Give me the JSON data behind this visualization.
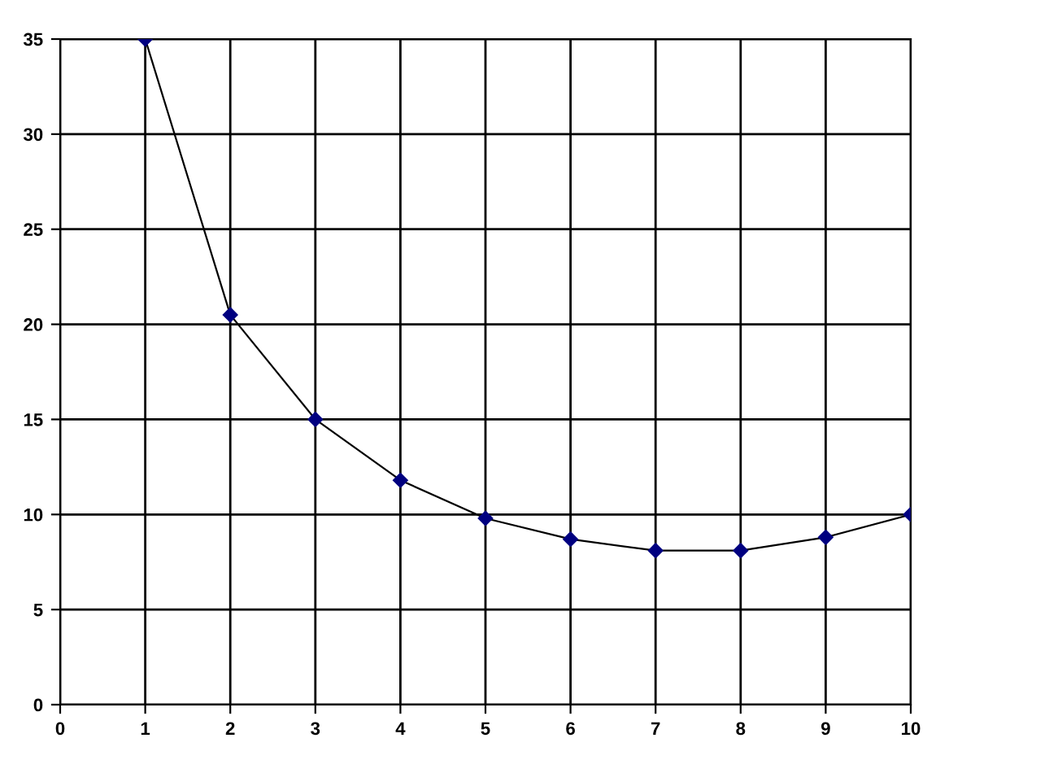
{
  "chart_data": {
    "type": "line",
    "x": [
      1,
      2,
      3,
      4,
      5,
      6,
      7,
      8,
      9,
      10
    ],
    "series": [
      {
        "color": "#000080",
        "values": [
          35,
          20.5,
          15,
          11.8,
          9.8,
          8.7,
          8.1,
          8.1,
          8.8,
          10
        ]
      }
    ],
    "xlim": [
      0,
      10
    ],
    "xticks": [
      0,
      1,
      2,
      3,
      4,
      5,
      6,
      7,
      8,
      9,
      10
    ],
    "ylim": [
      0,
      35
    ],
    "yticks": [
      0,
      5,
      10,
      15,
      20,
      25,
      30,
      35
    ],
    "grid": true,
    "marker": "diamond",
    "line_style": "solid"
  }
}
